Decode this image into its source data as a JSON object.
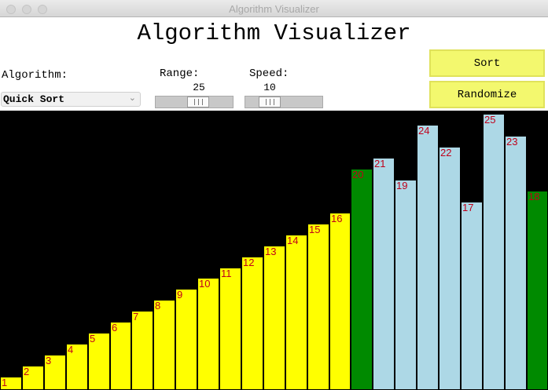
{
  "window": {
    "title": "Algorithm Visualizer"
  },
  "app": {
    "heading": "Algorithm Visualizer",
    "algorithm_label": "Algorithm:",
    "algorithm_value": "Quick Sort",
    "range_label": "Range:",
    "range_value": "25",
    "speed_label": "Speed:",
    "speed_value": "10",
    "sort_button": "Sort",
    "randomize_button": "Randomize"
  },
  "colors": {
    "sorted": "#ffff00",
    "pivot": "#008a00",
    "unsorted": "#add8e6",
    "label": "#c0001a",
    "background": "#000000",
    "button": "#f3f86e"
  },
  "bars": [
    {
      "value": 1,
      "state": "sorted"
    },
    {
      "value": 2,
      "state": "sorted"
    },
    {
      "value": 3,
      "state": "sorted"
    },
    {
      "value": 4,
      "state": "sorted"
    },
    {
      "value": 5,
      "state": "sorted"
    },
    {
      "value": 6,
      "state": "sorted"
    },
    {
      "value": 7,
      "state": "sorted"
    },
    {
      "value": 8,
      "state": "sorted"
    },
    {
      "value": 9,
      "state": "sorted"
    },
    {
      "value": 10,
      "state": "sorted"
    },
    {
      "value": 11,
      "state": "sorted"
    },
    {
      "value": 12,
      "state": "sorted"
    },
    {
      "value": 13,
      "state": "sorted"
    },
    {
      "value": 14,
      "state": "sorted"
    },
    {
      "value": 15,
      "state": "sorted"
    },
    {
      "value": 16,
      "state": "sorted"
    },
    {
      "value": 20,
      "state": "pivot"
    },
    {
      "value": 21,
      "state": "unsorted"
    },
    {
      "value": 19,
      "state": "unsorted"
    },
    {
      "value": 24,
      "state": "unsorted"
    },
    {
      "value": 22,
      "state": "unsorted"
    },
    {
      "value": 17,
      "state": "unsorted"
    },
    {
      "value": 25,
      "state": "unsorted"
    },
    {
      "value": 23,
      "state": "unsorted"
    },
    {
      "value": 18,
      "state": "pivot"
    }
  ]
}
